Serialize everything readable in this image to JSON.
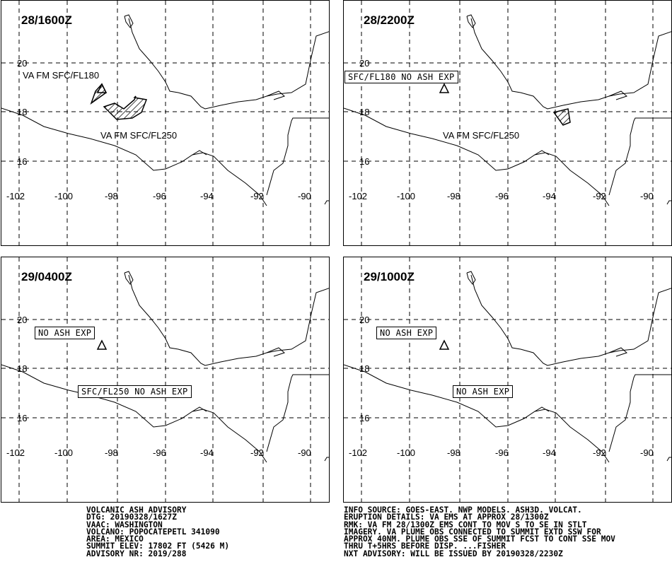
{
  "panels": [
    {
      "time": "28/1600Z",
      "labels": [
        "VA FM SFC/FL180",
        "VA FM SFC/FL250"
      ],
      "boxes": []
    },
    {
      "time": "28/2200Z",
      "labels": [
        "VA FM SFC/FL250"
      ],
      "boxes": [
        "SFC/FL180 NO ASH EXP"
      ]
    },
    {
      "time": "29/0400Z",
      "labels": [],
      "boxes": [
        "NO ASH EXP",
        "SFC/FL250 NO ASH EXP"
      ]
    },
    {
      "time": "29/1000Z",
      "labels": [],
      "boxes": [
        "NO ASH EXP",
        "NO ASH EXP"
      ]
    }
  ],
  "axes": {
    "lat_labels": [
      "20",
      "18",
      "16"
    ],
    "lon_labels": [
      "-102",
      "-100",
      "-98",
      "-96",
      "-94",
      "-92",
      "-90"
    ]
  },
  "footer_left": [
    "VOLCANIC ASH ADVISORY",
    "DTG: 20190328/1627Z",
    "VAAC: WASHINGTON",
    "VOLCANO: POPOCATEPETL 341090",
    "AREA: MEXICO",
    "SUMMIT ELEV: 17802 FT (5426 M)",
    "ADVISORY NR: 2019/288"
  ],
  "footer_right": [
    "INFO SOURCE: GOES-EAST. NWP MODELS. ASH3D. VOLCAT.",
    "ERUPTION DETAILS: VA EMS AT APPROX 28/1300Z",
    "RMK: VA FM 28/1300Z EMS CONT TO MOV S TO SE IN STLT",
    "IMAGERY. VA PLUME OBS CONNECTED TO SUMMIT EXTD SSW FOR",
    "APPROX 40NM. PLUME OBS SSE OF SUMMIT FCST TO CONT SSE MOV",
    "THRU T+5HRS BEFORE DISP. ...FISHER",
    "NXT ADVISORY: WILL BE ISSUED BY 20190328/2230Z"
  ],
  "icons": {
    "volcano": "volcano-triangle-icon"
  }
}
